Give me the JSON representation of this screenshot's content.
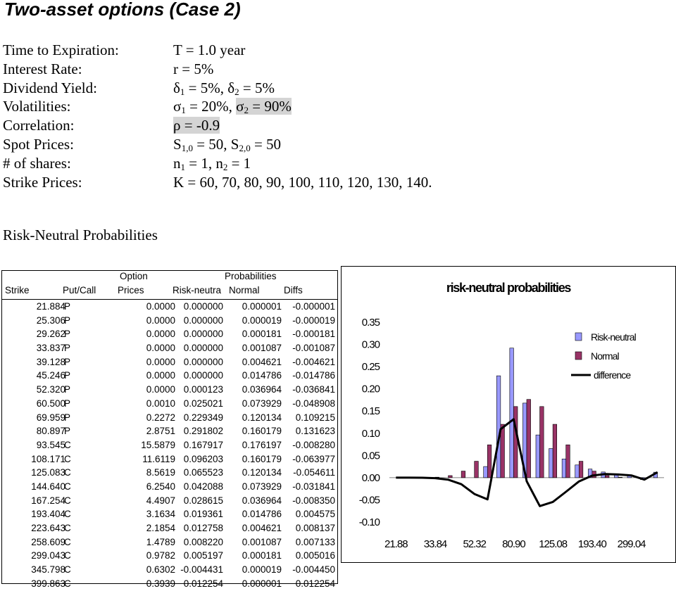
{
  "title": "Two-asset options (Case 2)",
  "params": [
    {
      "label": "Time to Expiration:",
      "value_html": "T = 1.0 year"
    },
    {
      "label": "Interest Rate:",
      "value_html": "r = 5%"
    },
    {
      "label": "Dividend Yield:",
      "value_html": "δ<sub>1</sub> = 5%, δ<sub>2</sub> = 5%"
    },
    {
      "label": "Volatilities:",
      "value_html": "σ<sub>1</sub> = 20%, <span class=\"hl\">σ<sub>2</sub> = 90%</span>"
    },
    {
      "label": "Correlation:",
      "value_html": "<span class=\"hl\">ρ = -0.9</span>"
    },
    {
      "label": "Spot Prices:",
      "value_html": "S<sub>1,0</sub> = 50, S<sub>2,0</sub> = 50"
    },
    {
      "label": "# of shares:",
      "value_html": "n<sub>1</sub> = 1, n<sub>2</sub> = 1"
    },
    {
      "label": "Strike Prices:",
      "value_html": "K = 60, 70, 80, 90, 100, 110, 120, 130, 140."
    }
  ],
  "rn_heading": "Risk-Neutral Probabilities",
  "table": {
    "header_top": {
      "option": "Option",
      "probabilities": "Probabilities"
    },
    "headers": {
      "strike": "Strike",
      "putcall": "Put/Call",
      "prices": "Prices",
      "rn": "Risk-neutra",
      "normal": "Normal",
      "diffs": "Diffs"
    },
    "rows": [
      [
        "21.884",
        "P",
        "0.0000",
        "0.000000",
        "0.000001",
        "-0.000001"
      ],
      [
        "25.306",
        "P",
        "0.0000",
        "0.000000",
        "0.000019",
        "-0.000019"
      ],
      [
        "29.262",
        "P",
        "0.0000",
        "0.000000",
        "0.000181",
        "-0.000181"
      ],
      [
        "33.837",
        "P",
        "0.0000",
        "0.000000",
        "0.001087",
        "-0.001087"
      ],
      [
        "39.128",
        "P",
        "0.0000",
        "0.000000",
        "0.004621",
        "-0.004621"
      ],
      [
        "45.246",
        "P",
        "0.0000",
        "0.000000",
        "0.014786",
        "-0.014786"
      ],
      [
        "52.320",
        "P",
        "0.0000",
        "0.000123",
        "0.036964",
        "-0.036841"
      ],
      [
        "60.500",
        "P",
        "0.0010",
        "0.025021",
        "0.073929",
        "-0.048908"
      ],
      [
        "69.959",
        "P",
        "0.2272",
        "0.229349",
        "0.120134",
        "0.109215"
      ],
      [
        "80.897",
        "P",
        "2.8751",
        "0.291802",
        "0.160179",
        "0.131623"
      ],
      [
        "93.545",
        "C",
        "15.5879",
        "0.167917",
        "0.176197",
        "-0.008280"
      ],
      [
        "108.171",
        "C",
        "11.6119",
        "0.096203",
        "0.160179",
        "-0.063977"
      ],
      [
        "125.083",
        "C",
        "8.5619",
        "0.065523",
        "0.120134",
        "-0.054611"
      ],
      [
        "144.640",
        "C",
        "6.2540",
        "0.042088",
        "0.073929",
        "-0.031841"
      ],
      [
        "167.254",
        "C",
        "4.4907",
        "0.028615",
        "0.036964",
        "-0.008350"
      ],
      [
        "193.404",
        "C",
        "3.1634",
        "0.019361",
        "0.014786",
        "0.004575"
      ],
      [
        "223.643",
        "C",
        "2.1854",
        "0.012758",
        "0.004621",
        "0.008137"
      ],
      [
        "258.609",
        "C",
        "1.4789",
        "0.008220",
        "0.001087",
        "0.007133"
      ],
      [
        "299.043",
        "C",
        "0.9782",
        "0.005197",
        "0.000181",
        "0.005016"
      ],
      [
        "345.798",
        "C",
        "0.6302",
        "-0.004431",
        "0.000019",
        "-0.004450"
      ],
      [
        "399.863",
        "C",
        "0.3939",
        "0.012254",
        "0.000001",
        "0.012254"
      ]
    ]
  },
  "chart_data": {
    "type": "bar",
    "title": "risk-neutral probabilities",
    "categories": [
      "21.88",
      "25.31",
      "29.26",
      "33.84",
      "39.13",
      "45.25",
      "52.32",
      "60.50",
      "69.96",
      "80.90",
      "93.55",
      "108.17",
      "125.08",
      "144.64",
      "167.25",
      "193.40",
      "223.64",
      "258.61",
      "299.04",
      "345.80",
      "399.86"
    ],
    "tick_labels": [
      "21.88",
      "33.84",
      "52.32",
      "80.90",
      "125.08",
      "193.40",
      "299.04"
    ],
    "series": [
      {
        "name": "Risk-neutral",
        "kind": "bar",
        "color": "#9999ff",
        "values": [
          0.0,
          0.0,
          0.0,
          0.0,
          0.0,
          0.0,
          0.000123,
          0.025021,
          0.229349,
          0.291802,
          0.167917,
          0.096203,
          0.065523,
          0.042088,
          0.028615,
          0.019361,
          0.012758,
          0.00822,
          0.005197,
          -0.004431,
          0.012254
        ]
      },
      {
        "name": "Normal",
        "kind": "bar",
        "color": "#993366",
        "values": [
          1e-06,
          1.9e-05,
          0.000181,
          0.001087,
          0.004621,
          0.014786,
          0.036964,
          0.073929,
          0.120134,
          0.160179,
          0.176197,
          0.160179,
          0.120134,
          0.073929,
          0.036964,
          0.014786,
          0.004621,
          0.001087,
          0.000181,
          1.9e-05,
          1e-06
        ]
      },
      {
        "name": "difference",
        "kind": "line",
        "color": "#000000",
        "values": [
          -1e-06,
          -1.9e-05,
          -0.000181,
          -0.001087,
          -0.004621,
          -0.014786,
          -0.036841,
          -0.048908,
          0.109215,
          0.131623,
          -0.00828,
          -0.063977,
          -0.054611,
          -0.031841,
          -0.00835,
          0.004575,
          0.008137,
          0.007133,
          0.005016,
          -0.00445,
          0.012254
        ]
      }
    ],
    "ylim": [
      -0.1,
      0.35
    ],
    "yticks": [
      "0.35",
      "0.30",
      "0.25",
      "0.20",
      "0.15",
      "0.10",
      "0.05",
      "0.00",
      "-0.05",
      "-0.10"
    ],
    "grid": false,
    "legend": "right"
  }
}
